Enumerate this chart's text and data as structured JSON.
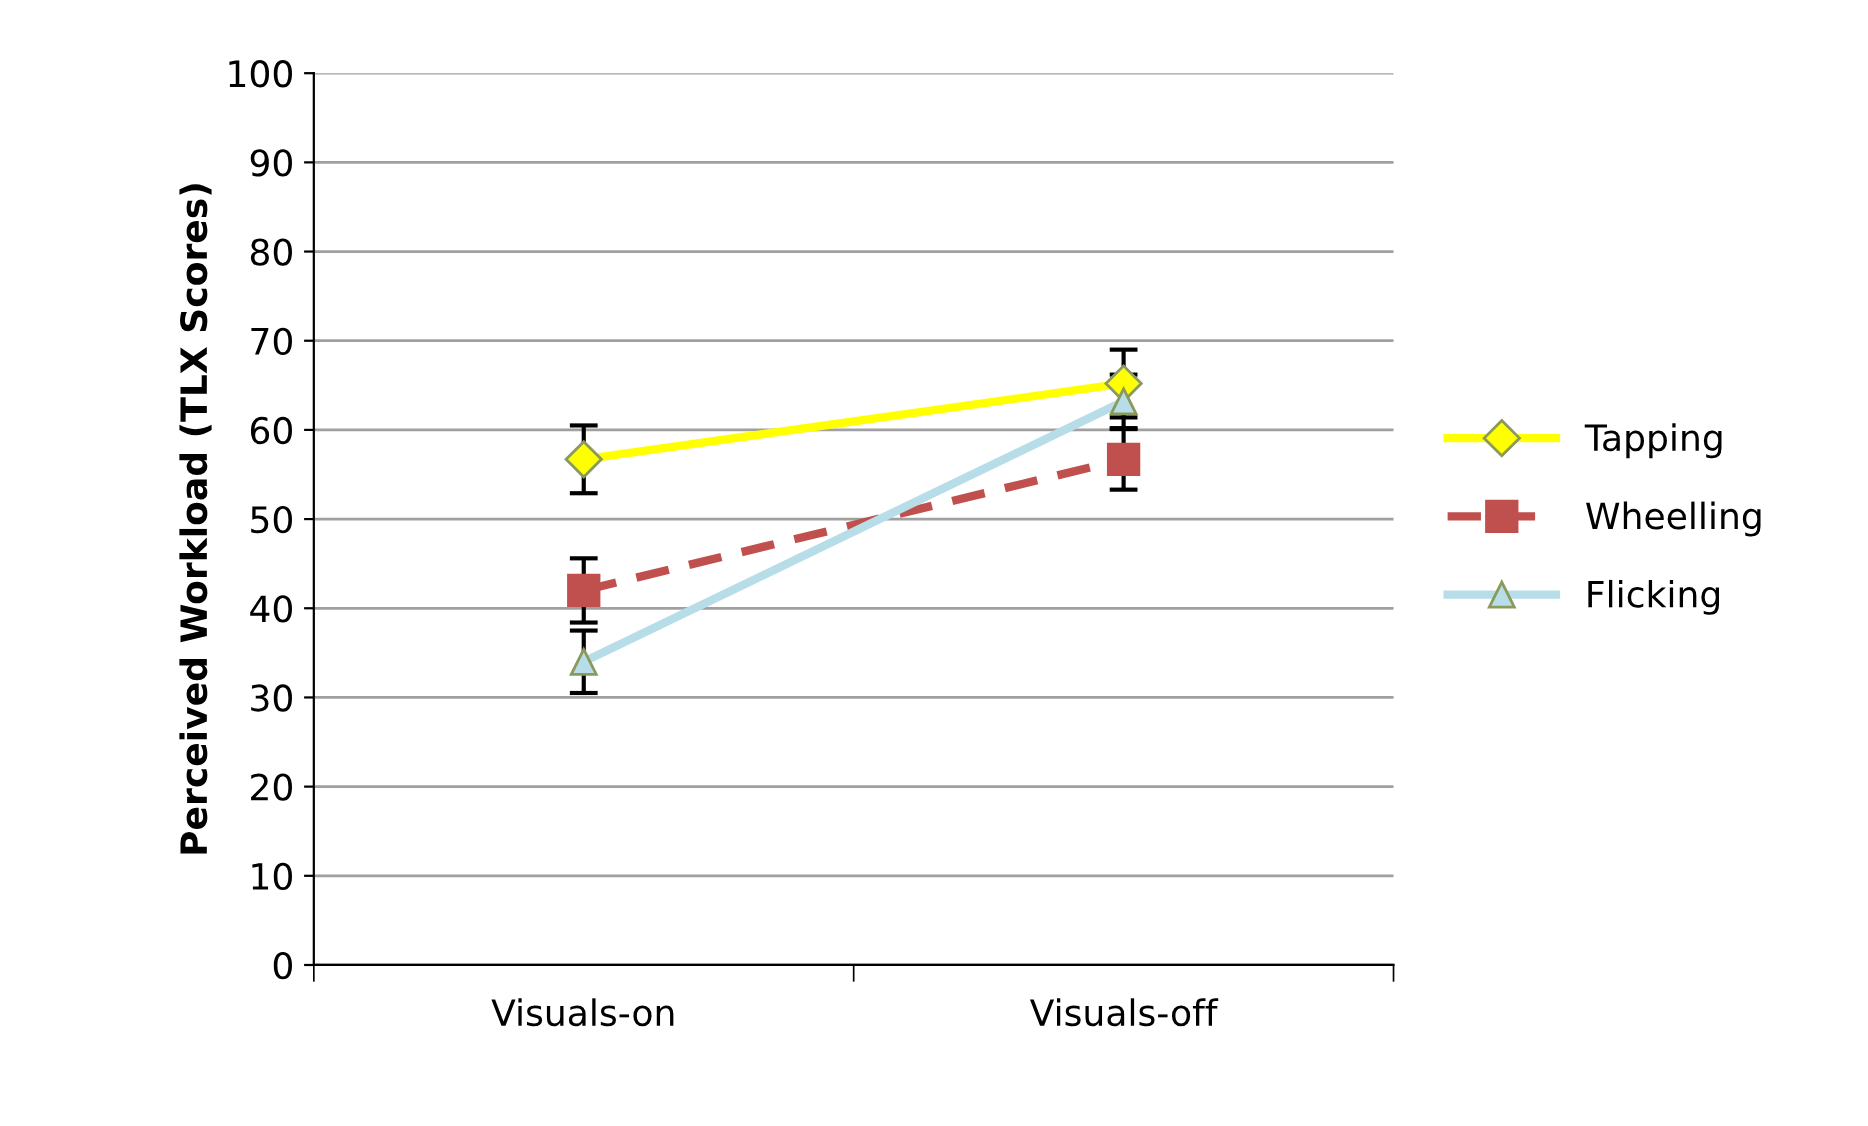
{
  "chart_data": {
    "type": "line",
    "ylabel": "Perceived Workload (TLX Scores)",
    "categories": [
      "Visuals-on",
      "Visuals-off"
    ],
    "ylim": [
      0,
      100
    ],
    "yticks": [
      0,
      10,
      20,
      30,
      40,
      50,
      60,
      70,
      80,
      90,
      100
    ],
    "grid": "y",
    "legend": "right",
    "series": [
      {
        "name": "Tapping",
        "color": "#ffff00",
        "values": [
          56.7,
          65.2
        ],
        "errors": [
          3.8,
          3.8
        ],
        "marker": "diamond",
        "line_style": "solid"
      },
      {
        "name": "Wheelling",
        "color": "#c0504d",
        "values": [
          42,
          56.7
        ],
        "errors": [
          3.6,
          3.4
        ],
        "marker": "square",
        "line_style": "dashed"
      },
      {
        "name": "Flicking",
        "color": "#b7dde8",
        "values": [
          34,
          63.2
        ],
        "errors": [
          3.5,
          3
        ],
        "marker": "triangle",
        "line_style": "solid"
      }
    ]
  }
}
